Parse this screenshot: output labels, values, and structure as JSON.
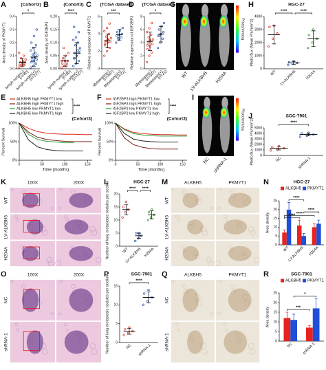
{
  "chart_data": [
    {
      "type": "strip",
      "letter": "A",
      "title": "(Cohort3)",
      "ylabel": "Area density of PKMYT1",
      "categories": [
        "lymph nodes(-)",
        "lymph nodes(+)"
      ],
      "counts": [
        "(n=80)",
        "(n=127)"
      ],
      "colors": [
        "#d93a2b",
        "#2a55a8"
      ],
      "values": [
        0.05,
        0.09
      ],
      "errors": [
        0.03,
        0.07
      ],
      "points": [
        [
          0.01,
          0.02,
          0.03,
          0.03,
          0.04,
          0.05,
          0.05,
          0.06,
          0.07,
          0.08,
          0.1,
          0.12,
          0.02,
          0.04
        ],
        [
          0.01,
          0.02,
          0.04,
          0.05,
          0.06,
          0.07,
          0.08,
          0.09,
          0.1,
          0.11,
          0.12,
          0.14,
          0.16,
          0.18,
          0.2,
          0.25,
          0.3,
          0.06,
          0.08
        ]
      ],
      "ylim": [
        0,
        0.4
      ],
      "yticks": [
        {
          "value": 0,
          "label": "0.0"
        },
        0.1,
        0.2,
        0.3,
        0.4
      ],
      "significance": "*"
    },
    {
      "type": "strip",
      "letter": "B",
      "title": "(Cohort3)",
      "ylabel": "Area density of IGF2BP3",
      "categories": [
        "lymph nodes(-)",
        "lymph nodes(+)"
      ],
      "counts": [
        "(n=80)",
        "(n=127)"
      ],
      "colors": [
        "#d93a2b",
        "#2a55a8"
      ],
      "values": [
        0.03,
        0.06
      ],
      "errors": [
        0.02,
        0.04
      ],
      "points": [
        [
          0.005,
          0.01,
          0.02,
          0.02,
          0.03,
          0.03,
          0.04,
          0.05,
          0.06,
          0.08,
          0.01,
          0.03
        ],
        [
          0.01,
          0.02,
          0.03,
          0.04,
          0.05,
          0.06,
          0.06,
          0.07,
          0.08,
          0.09,
          0.1,
          0.11,
          0.12,
          0.14,
          0.16,
          0.05,
          0.07,
          0.04
        ]
      ],
      "ylim": [
        0,
        0.2
      ],
      "yticks": [
        {
          "value": 0,
          "label": "0.00"
        },
        0.05,
        {
          "value": 0.1,
          "label": "0.10"
        },
        0.15,
        {
          "value": 0.2,
          "label": "0.20"
        }
      ],
      "significance": "****"
    },
    {
      "type": "strip",
      "letter": "C",
      "title": "(TCGA dataset)",
      "ylabel": "Relative expression of PKMYT1",
      "categories": [
        "Metastasis(-)",
        "Metastasis(+)"
      ],
      "counts": [
        "(n=367)",
        "(n=21)"
      ],
      "colors": [
        "#d93a2b",
        "#2a55a8"
      ],
      "values": [
        3.2,
        3.9
      ],
      "errors": [
        0.8,
        0.6
      ],
      "points": [
        [
          1.5,
          2,
          2.4,
          2.7,
          3,
          3.1,
          3.2,
          3.3,
          3.5,
          3.7,
          4,
          4.3,
          4.7,
          5.2,
          2.9,
          3.4
        ],
        [
          3,
          3.3,
          3.6,
          3.8,
          3.9,
          4,
          4.2,
          4.4,
          4.7,
          3.5
        ]
      ],
      "ylim": [
        0,
        6
      ],
      "yticks": [
        0,
        2,
        4,
        6
      ],
      "significance": "***"
    },
    {
      "type": "strip",
      "letter": "D",
      "title": "(TCGA dataset)",
      "ylabel": "Relative expression of IGF2BP3",
      "categories": [
        "Metastasis(-)",
        "Metastasis(+)"
      ],
      "counts": [
        "(n=367)",
        "(n=21)"
      ],
      "colors": [
        "#d93a2b",
        "#2a55a8"
      ],
      "values": [
        4.2,
        5.3
      ],
      "errors": [
        1.4,
        1.2
      ],
      "points": [
        [
          1,
          2,
          2.5,
          3,
          3.4,
          3.8,
          4,
          4.2,
          4.5,
          4.8,
          5.2,
          5.6,
          6.2,
          7,
          3.6,
          4.4
        ],
        [
          3.2,
          4,
          4.6,
          5,
          5.3,
          5.6,
          6,
          6.5,
          7,
          5.1
        ]
      ],
      "ylim": [
        0,
        8
      ],
      "yticks": [
        0,
        2,
        4,
        6,
        8
      ],
      "significance": "*"
    },
    {
      "type": "strip",
      "letter": "H",
      "title": "HGC-27",
      "ylabel": "Photo flux (Mean P/s/mm^2)",
      "categories": [
        "WT",
        "LV-ALKBH5",
        "H204A"
      ],
      "colors": [
        "#d93a2b",
        "#2a55a8",
        "#3a9a3a"
      ],
      "values": [
        2600,
        450,
        2300
      ],
      "errors": [
        700,
        120,
        600
      ],
      "points": [
        [
          1700,
          2300,
          2700,
          3200,
          3300
        ],
        [
          300,
          400,
          450,
          500,
          600
        ],
        [
          1600,
          2000,
          2300,
          2600,
          3000
        ]
      ],
      "ylim": [
        0,
        4000
      ],
      "yticks": [
        0,
        1000,
        2000,
        3000,
        4000
      ],
      "significance": [
        "****",
        "****"
      ]
    },
    {
      "type": "line",
      "letter": "E",
      "title": "(Cohort3)",
      "xlabel": "Time (months)",
      "ylabel": "Percent Survival",
      "x": [
        0,
        20,
        40,
        60,
        80,
        100,
        120,
        140,
        160
      ],
      "series": [
        {
          "name": "ALKBH5 high PKMYT1 low",
          "color": "#e0261c",
          "values": [
            100,
            86,
            77,
            73,
            71,
            70,
            70,
            69,
            69
          ]
        },
        {
          "name": "ALKBH5 high PKMYT1 high",
          "color": "#7a1c14",
          "values": [
            100,
            76,
            62,
            56,
            53,
            51,
            50,
            50,
            50
          ]
        },
        {
          "name": "ALKBH5 low PKMYT1 low",
          "color": "#2f9e3a",
          "values": [
            100,
            70,
            56,
            51,
            49,
            47,
            47,
            null,
            null
          ]
        },
        {
          "name": "ALKBH5 low PKMYT1 high",
          "color": "#222222",
          "values": [
            100,
            55,
            36,
            29,
            26,
            25,
            25,
            25,
            null
          ]
        }
      ],
      "xlim": [
        0,
        160
      ],
      "xticks": [
        0,
        50,
        100,
        150
      ],
      "ylim": [
        0,
        100
      ],
      "yticks": [
        {
          "value": 0,
          "label": "0%"
        },
        {
          "value": 50,
          "label": "50%"
        },
        {
          "value": 100,
          "label": "100%"
        }
      ],
      "significance": "****"
    },
    {
      "type": "line",
      "letter": "F",
      "title": "(Cohort3)",
      "xlabel": "Time (months)",
      "ylabel": "Percent Survival",
      "x": [
        0,
        20,
        40,
        60,
        80,
        100,
        120,
        140,
        160
      ],
      "series": [
        {
          "name": "IGF2BP3 high PKMYT1 low",
          "color": "#e0261c",
          "values": [
            100,
            84,
            75,
            72,
            70,
            69,
            69,
            68,
            68
          ]
        },
        {
          "name": "IGF2BP3 high PKMYT1 high",
          "color": "#7a1c14",
          "values": [
            100,
            60,
            42,
            35,
            31,
            30,
            30,
            30,
            null
          ]
        },
        {
          "name": "IGF2BP3 low PKMYT1 low",
          "color": "#2f9e3a",
          "values": [
            100,
            82,
            72,
            68,
            66,
            65,
            65,
            65,
            65
          ]
        },
        {
          "name": "IGF2BP3 low PKMYT1 high",
          "color": "#222222",
          "values": [
            100,
            72,
            57,
            52,
            50,
            49,
            49,
            49,
            null
          ]
        }
      ],
      "xlim": [
        0,
        160
      ],
      "xticks": [
        0,
        50,
        100,
        150
      ],
      "ylim": [
        0,
        100
      ],
      "yticks": [
        {
          "value": 0,
          "label": "0%"
        },
        {
          "value": 50,
          "label": "50%"
        },
        {
          "value": 100,
          "label": "100%"
        }
      ],
      "significance": "****"
    },
    {
      "type": "strip",
      "letter": "J",
      "title": "SGC-7901",
      "ylabel": "Photo flux (Mean P/s/mm^2)",
      "categories": [
        "NC",
        "shRNA-1"
      ],
      "colors": [
        "#d93a2b",
        "#2a55a8"
      ],
      "values": [
        1300,
        3800
      ],
      "errors": [
        300,
        250
      ],
      "points": [
        [
          900,
          1100,
          1300,
          1500,
          1700
        ],
        [
          3400,
          3600,
          3800,
          4000,
          4100
        ]
      ],
      "ylim": [
        0,
        5000
      ],
      "yticks": [
        0,
        1000,
        2000,
        3000,
        4000,
        5000
      ],
      "significance": "****"
    },
    {
      "type": "strip",
      "letter": "L",
      "title": "HGC-27",
      "ylabel": "Number of lung metastasis nodules per section",
      "categories": [
        "WT",
        "LV-ALKBH5",
        "H204A"
      ],
      "colors": [
        "#d93a2b",
        "#2a55a8",
        "#3a9a3a"
      ],
      "values": [
        14,
        4,
        12
      ],
      "errors": [
        2,
        1,
        1.5
      ],
      "points": [
        [
          11,
          13,
          14,
          15,
          17
        ],
        [
          2,
          3,
          4,
          5,
          5
        ],
        [
          10,
          11,
          12,
          13,
          14
        ]
      ],
      "ylim": [
        0,
        20
      ],
      "yticks": [
        0,
        5,
        10,
        15,
        20
      ],
      "significance": [
        "****",
        "****"
      ]
    },
    {
      "type": "bar",
      "letter": "N",
      "title": "HGC-27",
      "ylabel": "Area density",
      "categories": [
        "WT",
        "LV-ALKBH5",
        "H204A"
      ],
      "series": [
        {
          "name": "ALKBH5",
          "color": "#e8231f",
          "values": [
            7,
            11,
            10
          ],
          "errors": [
            1.5,
            3,
            2
          ]
        },
        {
          "name": "PKMYT1",
          "color": "#1f4fd8",
          "values": [
            20,
            5,
            12
          ],
          "errors": [
            4,
            1.5,
            2
          ]
        }
      ],
      "ylim": [
        0,
        25
      ],
      "yticks": [
        0,
        5,
        10,
        15,
        20,
        25
      ],
      "significance": [
        "****",
        "****",
        "****",
        "****"
      ]
    },
    {
      "type": "strip",
      "letter": "P",
      "title": "SGC-7901",
      "ylabel": "Number of lung metastasis nodules per section",
      "categories": [
        "NC",
        "shRNA-1"
      ],
      "colors": [
        "#d93a2b",
        "#2a55a8"
      ],
      "values": [
        3,
        12
      ],
      "errors": [
        0.8,
        1.5
      ],
      "points": [
        [
          2,
          2.5,
          3,
          3.5,
          4
        ],
        [
          10,
          11,
          12,
          13,
          14
        ]
      ],
      "ylim": [
        0,
        15
      ],
      "yticks": [
        0,
        5,
        10,
        15
      ],
      "significance": "****"
    },
    {
      "type": "bar",
      "letter": "R",
      "title": "SGC-7901",
      "ylabel": "Area density",
      "categories": [
        "NC",
        "shRNA-1"
      ],
      "series": [
        {
          "name": "ALKBH5",
          "color": "#e8231f",
          "values": [
            12,
            7
          ],
          "errors": [
            3,
            1
          ]
        },
        {
          "name": "PKMYT1",
          "color": "#1f4fd8",
          "values": [
            11,
            17
          ],
          "errors": [
            3,
            5
          ]
        }
      ],
      "ylim": [
        0,
        25
      ],
      "yticks": [
        0,
        5,
        10,
        15,
        20,
        25
      ],
      "significance": [
        "***",
        "*"
      ]
    }
  ],
  "image_panels": [
    {
      "letter": "G",
      "columns": [
        "WT",
        "LV-ALKBH5",
        "H204A"
      ],
      "scale_label": "P/sec/mm/sq"
    },
    {
      "letter": "I",
      "columns": [
        "NC",
        "shRNA-1"
      ],
      "scale_label": "P/sec/mm/sq"
    },
    {
      "letter": "K",
      "columns": [
        "100X",
        "200X"
      ],
      "rows": [
        "WT",
        "LV-ALKBH5",
        "H204A"
      ]
    },
    {
      "letter": "M",
      "columns": [
        "ALKBH5",
        "PKMYT1"
      ],
      "rows": [
        "WT",
        "LV-ALKBH5",
        "H204A"
      ]
    },
    {
      "letter": "O",
      "columns": [
        "100X",
        "200X"
      ],
      "rows": [
        "NC",
        "shRNA-1"
      ]
    },
    {
      "letter": "Q",
      "columns": [
        "ALKBH5",
        "PKMYT1"
      ],
      "rows": [
        "NC",
        "shRNA-1"
      ]
    }
  ]
}
